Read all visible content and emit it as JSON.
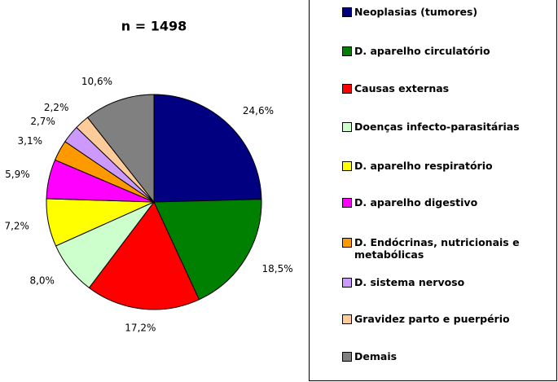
{
  "chart_data": {
    "type": "pie",
    "title": "n = 1498",
    "categories": [
      "Neoplasias (tumores)",
      "D. aparelho circulatório",
      "Causas externas",
      "Doenças infecto-parasitárias",
      "D. aparelho respiratório",
      "D. aparelho digestivo",
      "D. Endócrinas, nutricionais e metabólicas",
      "D. sistema nervoso",
      "Gravidez parto e puerpério",
      "Demais"
    ],
    "values": [
      24.6,
      18.5,
      17.2,
      8.0,
      7.2,
      5.9,
      3.1,
      2.7,
      2.2,
      10.6
    ],
    "value_labels": [
      "24,6%",
      "18,5%",
      "17,2%",
      "8,0%",
      "7,2%",
      "5,9%",
      "3,1%",
      "2,7%",
      "2,2%",
      "10,6%"
    ],
    "colors": [
      "#000080",
      "#008000",
      "#ff0000",
      "#ccffcc",
      "#ffff00",
      "#ff00ff",
      "#ff9900",
      "#cc99ff",
      "#ffcc99",
      "#808080"
    ],
    "legend": "right"
  }
}
